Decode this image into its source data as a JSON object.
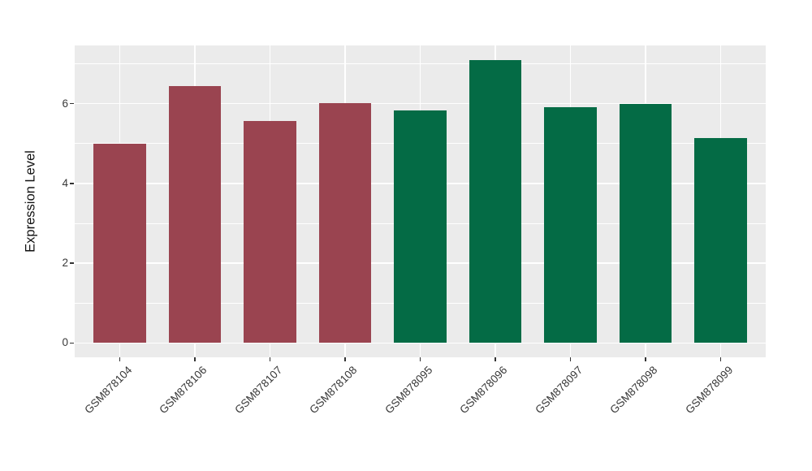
{
  "chart_data": {
    "type": "bar",
    "title": "",
    "xlabel": "",
    "ylabel": "Expression Level",
    "categories": [
      "GSM878104",
      "GSM878106",
      "GSM878107",
      "GSM878108",
      "GSM878095",
      "GSM878096",
      "GSM878097",
      "GSM878098",
      "GSM878099"
    ],
    "values": [
      5.0,
      6.45,
      5.57,
      6.02,
      5.84,
      7.1,
      5.91,
      6.0,
      5.14
    ],
    "groups": [
      "group1",
      "group1",
      "group1",
      "group1",
      "group2",
      "group2",
      "group2",
      "group2",
      "group2"
    ],
    "group_colors": {
      "group1": "#9A4450",
      "group2": "#046B45"
    },
    "y_ticks": [
      0,
      2,
      4,
      6
    ],
    "y_tick_labels": [
      "0",
      "2",
      "4",
      "6"
    ],
    "y_minor_ticks": [
      1,
      3,
      5,
      7
    ],
    "ylim": [
      -0.36,
      7.46
    ],
    "bar_width_frac": 0.7,
    "x_edge_pad": 0.6,
    "grid": "on",
    "legend_position": "none",
    "panel_bg": "#EBEBEB",
    "grid_major_color": "#FFFFFF",
    "grid_minor_color": "#FFFFFF",
    "tick_color": "#333333",
    "axis_text_color": "#383838",
    "x_tick_label_angle_deg": -45
  }
}
